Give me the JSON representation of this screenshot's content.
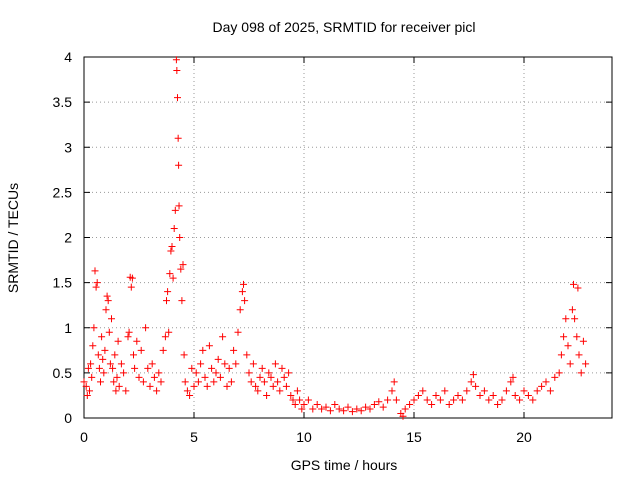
{
  "chart_data": {
    "type": "scatter",
    "title": "Day 098 of 2025, SRMTID for receiver picl",
    "xlabel": "GPS time / hours",
    "ylabel": "SRMTID / TECUs",
    "xlim": [
      0,
      24
    ],
    "ylim": [
      0,
      4
    ],
    "xticks": [
      0,
      5,
      10,
      15,
      20
    ],
    "xtick_labels": [
      "0",
      "5",
      "10",
      "15",
      "20"
    ],
    "yticks": [
      0,
      0.5,
      1,
      1.5,
      2,
      2.5,
      3,
      3.5,
      4
    ],
    "ytick_labels": [
      "0",
      "0.5",
      "1",
      "1.5",
      "2",
      "2.5",
      "3",
      "3.5",
      "4"
    ],
    "grid": true,
    "marker": "+",
    "marker_color": "#ff0000",
    "series": [
      {
        "name": "SRMTID",
        "points": [
          [
            0.0,
            0.4
          ],
          [
            0.1,
            0.35
          ],
          [
            0.15,
            0.25
          ],
          [
            0.2,
            0.55
          ],
          [
            0.25,
            0.3
          ],
          [
            0.3,
            0.6
          ],
          [
            0.35,
            0.45
          ],
          [
            0.4,
            0.8
          ],
          [
            0.45,
            1.0
          ],
          [
            0.5,
            1.63
          ],
          [
            0.55,
            1.45
          ],
          [
            0.6,
            1.5
          ],
          [
            0.65,
            0.7
          ],
          [
            0.7,
            0.55
          ],
          [
            0.75,
            0.4
          ],
          [
            0.8,
            0.9
          ],
          [
            0.85,
            0.65
          ],
          [
            0.9,
            0.5
          ],
          [
            0.95,
            0.75
          ],
          [
            1.0,
            1.2
          ],
          [
            1.05,
            1.35
          ],
          [
            1.1,
            1.3
          ],
          [
            1.15,
            0.95
          ],
          [
            1.2,
            0.6
          ],
          [
            1.25,
            1.1
          ],
          [
            1.3,
            0.55
          ],
          [
            1.35,
            0.4
          ],
          [
            1.4,
            0.7
          ],
          [
            1.45,
            0.3
          ],
          [
            1.5,
            0.45
          ],
          [
            1.55,
            0.85
          ],
          [
            1.6,
            0.35
          ],
          [
            1.7,
            0.6
          ],
          [
            1.8,
            0.5
          ],
          [
            1.9,
            0.3
          ],
          [
            2.0,
            0.9
          ],
          [
            2.05,
            0.95
          ],
          [
            2.1,
            1.56
          ],
          [
            2.15,
            1.45
          ],
          [
            2.2,
            1.55
          ],
          [
            2.25,
            0.7
          ],
          [
            2.3,
            0.55
          ],
          [
            2.4,
            0.85
          ],
          [
            2.5,
            0.45
          ],
          [
            2.6,
            0.75
          ],
          [
            2.7,
            0.4
          ],
          [
            2.8,
            1.0
          ],
          [
            2.9,
            0.55
          ],
          [
            3.0,
            0.35
          ],
          [
            3.1,
            0.6
          ],
          [
            3.2,
            0.45
          ],
          [
            3.3,
            0.3
          ],
          [
            3.4,
            0.5
          ],
          [
            3.5,
            0.4
          ],
          [
            3.6,
            0.75
          ],
          [
            3.7,
            0.9
          ],
          [
            3.75,
            1.3
          ],
          [
            3.8,
            1.4
          ],
          [
            3.85,
            0.95
          ],
          [
            3.9,
            1.6
          ],
          [
            3.95,
            1.85
          ],
          [
            4.0,
            1.9
          ],
          [
            4.05,
            1.55
          ],
          [
            4.1,
            2.1
          ],
          [
            4.15,
            2.3
          ],
          [
            4.2,
            3.97
          ],
          [
            4.22,
            3.85
          ],
          [
            4.25,
            3.55
          ],
          [
            4.28,
            3.1
          ],
          [
            4.3,
            2.8
          ],
          [
            4.32,
            2.35
          ],
          [
            4.35,
            2.0
          ],
          [
            4.4,
            1.65
          ],
          [
            4.45,
            1.3
          ],
          [
            4.5,
            1.7
          ],
          [
            4.55,
            0.7
          ],
          [
            4.6,
            0.4
          ],
          [
            4.7,
            0.3
          ],
          [
            4.8,
            0.25
          ],
          [
            4.9,
            0.55
          ],
          [
            5.0,
            0.35
          ],
          [
            5.1,
            0.5
          ],
          [
            5.2,
            0.4
          ],
          [
            5.3,
            0.6
          ],
          [
            5.4,
            0.75
          ],
          [
            5.5,
            0.45
          ],
          [
            5.6,
            0.35
          ],
          [
            5.7,
            0.8
          ],
          [
            5.8,
            0.55
          ],
          [
            5.9,
            0.4
          ],
          [
            6.0,
            0.5
          ],
          [
            6.1,
            0.65
          ],
          [
            6.2,
            0.45
          ],
          [
            6.3,
            0.9
          ],
          [
            6.4,
            0.6
          ],
          [
            6.5,
            0.35
          ],
          [
            6.6,
            0.55
          ],
          [
            6.7,
            0.4
          ],
          [
            6.8,
            0.75
          ],
          [
            6.9,
            0.6
          ],
          [
            7.0,
            0.95
          ],
          [
            7.1,
            1.2
          ],
          [
            7.2,
            1.4
          ],
          [
            7.25,
            1.48
          ],
          [
            7.3,
            1.3
          ],
          [
            7.4,
            0.7
          ],
          [
            7.5,
            0.5
          ],
          [
            7.6,
            0.4
          ],
          [
            7.7,
            0.6
          ],
          [
            7.8,
            0.35
          ],
          [
            7.9,
            0.3
          ],
          [
            8.0,
            0.45
          ],
          [
            8.1,
            0.55
          ],
          [
            8.2,
            0.4
          ],
          [
            8.3,
            0.25
          ],
          [
            8.4,
            0.5
          ],
          [
            8.5,
            0.45
          ],
          [
            8.6,
            0.35
          ],
          [
            8.7,
            0.6
          ],
          [
            8.8,
            0.4
          ],
          [
            8.9,
            0.3
          ],
          [
            9.0,
            0.55
          ],
          [
            9.1,
            0.45
          ],
          [
            9.2,
            0.35
          ],
          [
            9.3,
            0.5
          ],
          [
            9.4,
            0.25
          ],
          [
            9.5,
            0.2
          ],
          [
            9.6,
            0.15
          ],
          [
            9.7,
            0.3
          ],
          [
            9.8,
            0.2
          ],
          [
            9.9,
            0.1
          ],
          [
            10.0,
            0.15
          ],
          [
            10.2,
            0.2
          ],
          [
            10.4,
            0.1
          ],
          [
            10.6,
            0.15
          ],
          [
            10.8,
            0.1
          ],
          [
            11.0,
            0.12
          ],
          [
            11.2,
            0.08
          ],
          [
            11.4,
            0.15
          ],
          [
            11.6,
            0.1
          ],
          [
            11.8,
            0.08
          ],
          [
            12.0,
            0.12
          ],
          [
            12.2,
            0.07
          ],
          [
            12.4,
            0.1
          ],
          [
            12.6,
            0.08
          ],
          [
            12.8,
            0.12
          ],
          [
            13.0,
            0.1
          ],
          [
            13.2,
            0.15
          ],
          [
            13.4,
            0.18
          ],
          [
            13.6,
            0.12
          ],
          [
            13.8,
            0.2
          ],
          [
            14.0,
            0.3
          ],
          [
            14.1,
            0.4
          ],
          [
            14.2,
            0.2
          ],
          [
            14.4,
            0.05
          ],
          [
            14.5,
            0.02
          ],
          [
            14.6,
            0.1
          ],
          [
            14.8,
            0.15
          ],
          [
            15.0,
            0.2
          ],
          [
            15.2,
            0.25
          ],
          [
            15.4,
            0.3
          ],
          [
            15.6,
            0.2
          ],
          [
            15.8,
            0.15
          ],
          [
            16.0,
            0.25
          ],
          [
            16.2,
            0.2
          ],
          [
            16.4,
            0.3
          ],
          [
            16.6,
            0.15
          ],
          [
            16.8,
            0.2
          ],
          [
            17.0,
            0.25
          ],
          [
            17.2,
            0.2
          ],
          [
            17.4,
            0.3
          ],
          [
            17.6,
            0.4
          ],
          [
            17.7,
            0.48
          ],
          [
            17.8,
            0.35
          ],
          [
            18.0,
            0.25
          ],
          [
            18.2,
            0.3
          ],
          [
            18.4,
            0.2
          ],
          [
            18.6,
            0.25
          ],
          [
            18.8,
            0.15
          ],
          [
            19.0,
            0.2
          ],
          [
            19.2,
            0.3
          ],
          [
            19.4,
            0.4
          ],
          [
            19.5,
            0.45
          ],
          [
            19.6,
            0.25
          ],
          [
            19.8,
            0.2
          ],
          [
            20.0,
            0.3
          ],
          [
            20.2,
            0.25
          ],
          [
            20.4,
            0.2
          ],
          [
            20.6,
            0.3
          ],
          [
            20.8,
            0.35
          ],
          [
            21.0,
            0.4
          ],
          [
            21.2,
            0.3
          ],
          [
            21.4,
            0.45
          ],
          [
            21.6,
            0.5
          ],
          [
            21.7,
            0.7
          ],
          [
            21.8,
            0.9
          ],
          [
            21.9,
            1.1
          ],
          [
            22.0,
            0.8
          ],
          [
            22.1,
            0.6
          ],
          [
            22.2,
            1.2
          ],
          [
            22.25,
            1.48
          ],
          [
            22.3,
            1.1
          ],
          [
            22.4,
            0.9
          ],
          [
            22.45,
            1.44
          ],
          [
            22.5,
            0.7
          ],
          [
            22.6,
            0.5
          ],
          [
            22.7,
            0.85
          ],
          [
            22.8,
            0.6
          ]
        ]
      }
    ]
  }
}
